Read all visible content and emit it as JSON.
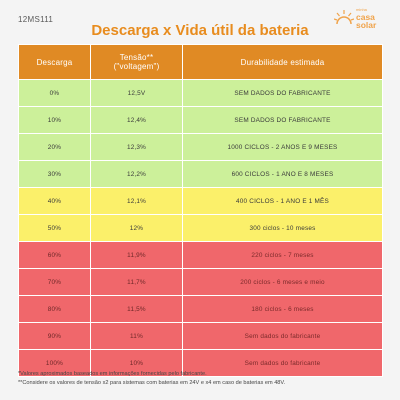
{
  "code": "12MS111",
  "title": "Descarga x Vida útil da bateria",
  "logo": {
    "small": "minha",
    "brand_line1": "casa",
    "brand_line2": "solar"
  },
  "table": {
    "headers": [
      "Descarga",
      "Tensão**\n(\"voltagem\")",
      "Durabilidade estimada"
    ],
    "rows": [
      {
        "discharge": "0%",
        "voltage": "12,5V",
        "durability": "SEM DADOS DO FABRICANTE",
        "zone": "green"
      },
      {
        "discharge": "10%",
        "voltage": "12,4%",
        "durability": "SEM DADOS DO FABRICANTE",
        "zone": "green"
      },
      {
        "discharge": "20%",
        "voltage": "12,3%",
        "durability": "1000 CICLOS - 2 ANOS E 9 MESES",
        "zone": "green"
      },
      {
        "discharge": "30%",
        "voltage": "12,2%",
        "durability": "600 CICLOS - 1 ANO E 8 MESES",
        "zone": "green"
      },
      {
        "discharge": "40%",
        "voltage": "12,1%",
        "durability": "400 CICLOS - 1 ANO E 1 MÊS",
        "zone": "yellow"
      },
      {
        "discharge": "50%",
        "voltage": "12%",
        "durability": "300 ciclos - 10 meses",
        "zone": "yellow"
      },
      {
        "discharge": "60%",
        "voltage": "11,9%",
        "durability": "220 ciclos - 7 meses",
        "zone": "red"
      },
      {
        "discharge": "70%",
        "voltage": "11,7%",
        "durability": "200 ciclos - 6 meses e meio",
        "zone": "red"
      },
      {
        "discharge": "80%",
        "voltage": "11,5%",
        "durability": "180 ciclos - 6 meses",
        "zone": "red"
      },
      {
        "discharge": "90%",
        "voltage": "11%",
        "durability": "Sem dados do fabricante",
        "zone": "red"
      },
      {
        "discharge": "100%",
        "voltage": "10%",
        "durability": "Sem dados do fabricante",
        "zone": "red"
      }
    ]
  },
  "notes": [
    "*Valores aproximados baseados em informações fornecidas pelo fabricante.",
    "**Considere os valores de tensão x2 para sistemas com baterias em 24V e x4 em caso de baterias em 48V."
  ],
  "colors": {
    "header": "#e08a24",
    "green": "#ccf09a",
    "yellow": "#fbf06a",
    "red": "#f0676b",
    "title": "#e88c1e"
  }
}
